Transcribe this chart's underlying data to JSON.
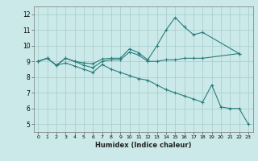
{
  "title": "",
  "xlabel": "Humidex (Indice chaleur)",
  "ylabel": "",
  "bg_color": "#cce9e9",
  "grid_color": "#aacfcf",
  "line_color": "#2a7d7d",
  "xlim": [
    -0.5,
    23.5
  ],
  "ylim": [
    4.5,
    12.5
  ],
  "yticks": [
    5,
    6,
    7,
    8,
    9,
    10,
    11,
    12
  ],
  "xticks": [
    0,
    1,
    2,
    3,
    4,
    5,
    6,
    7,
    8,
    9,
    10,
    11,
    12,
    13,
    14,
    15,
    16,
    17,
    18,
    19,
    20,
    21,
    22,
    23
  ],
  "line1_x": [
    0,
    1,
    2,
    3,
    4,
    5,
    6,
    7,
    8,
    9,
    10,
    11,
    12,
    13,
    14,
    15,
    16,
    17,
    18,
    22
  ],
  "line1_y": [
    9.0,
    9.2,
    8.75,
    9.2,
    9.0,
    8.9,
    8.85,
    9.15,
    9.2,
    9.2,
    9.8,
    9.55,
    9.1,
    10.0,
    11.0,
    11.8,
    11.2,
    10.7,
    10.85,
    9.5
  ],
  "line2_x": [
    0,
    1,
    2,
    3,
    4,
    5,
    6,
    7,
    8,
    9,
    10,
    11,
    12,
    13,
    14,
    15,
    16,
    17,
    18,
    22
  ],
  "line2_y": [
    9.0,
    9.2,
    8.75,
    9.2,
    9.0,
    8.75,
    8.6,
    9.0,
    9.1,
    9.1,
    9.6,
    9.4,
    9.0,
    9.0,
    9.1,
    9.1,
    9.2,
    9.2,
    9.2,
    9.5
  ],
  "line3_x": [
    0,
    1,
    2,
    3,
    4,
    5,
    6,
    7,
    8,
    9,
    10,
    11,
    12,
    13,
    14,
    15,
    16,
    17,
    18,
    19,
    20,
    21,
    22,
    23
  ],
  "line3_y": [
    9.0,
    9.2,
    8.75,
    8.9,
    8.7,
    8.5,
    8.3,
    8.8,
    8.5,
    8.3,
    8.1,
    7.9,
    7.8,
    7.5,
    7.2,
    7.0,
    6.8,
    6.6,
    6.4,
    7.5,
    6.1,
    6.0,
    6.0,
    5.0
  ]
}
